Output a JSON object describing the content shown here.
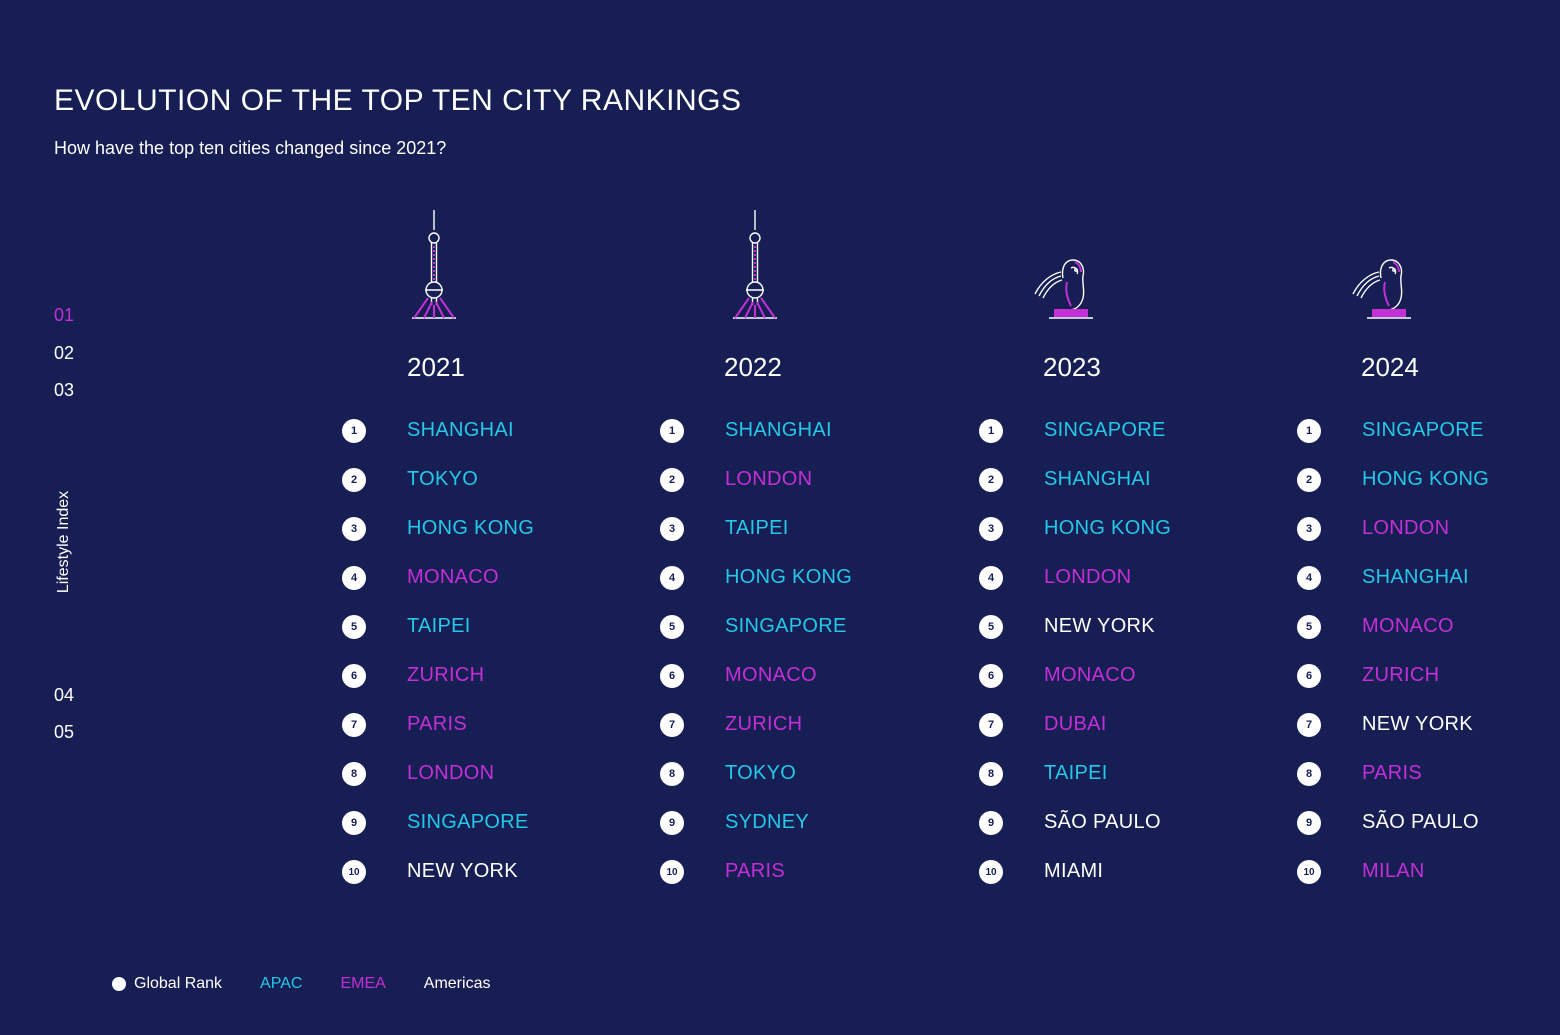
{
  "title": "EVOLUTION OF THE TOP TEN CITY RANKINGS",
  "subtitle": "How have the top ten cities changed since 2021?",
  "colors": {
    "background": "#161e54",
    "apac": "#25c8e8",
    "emea": "#c42fd6",
    "americas": "#ffffff",
    "active_nav": "#c42fd6"
  },
  "nav": {
    "items": [
      {
        "label": "01",
        "active": true
      },
      {
        "label": "02",
        "active": false
      },
      {
        "label": "03",
        "active": false
      },
      {
        "label": "04",
        "active": false
      },
      {
        "label": "05",
        "active": false
      }
    ],
    "section_label": "Lifestyle Index"
  },
  "columns": [
    {
      "year": "2021",
      "icon": "tv-tower-icon",
      "cities": [
        {
          "rank": "1",
          "name": "SHANGHAI",
          "region": "apac"
        },
        {
          "rank": "2",
          "name": "TOKYO",
          "region": "apac"
        },
        {
          "rank": "3",
          "name": "HONG KONG",
          "region": "apac"
        },
        {
          "rank": "4",
          "name": "MONACO",
          "region": "emea"
        },
        {
          "rank": "5",
          "name": "TAIPEI",
          "region": "apac"
        },
        {
          "rank": "6",
          "name": "ZURICH",
          "region": "emea"
        },
        {
          "rank": "7",
          "name": "PARIS",
          "region": "emea"
        },
        {
          "rank": "8",
          "name": "LONDON",
          "region": "emea"
        },
        {
          "rank": "9",
          "name": "SINGAPORE",
          "region": "apac"
        },
        {
          "rank": "10",
          "name": "NEW YORK",
          "region": "americas"
        }
      ]
    },
    {
      "year": "2022",
      "icon": "tv-tower-icon",
      "cities": [
        {
          "rank": "1",
          "name": "SHANGHAI",
          "region": "apac"
        },
        {
          "rank": "2",
          "name": "LONDON",
          "region": "emea"
        },
        {
          "rank": "3",
          "name": "TAIPEI",
          "region": "apac"
        },
        {
          "rank": "4",
          "name": "HONG KONG",
          "region": "apac"
        },
        {
          "rank": "5",
          "name": "SINGAPORE",
          "region": "apac"
        },
        {
          "rank": "6",
          "name": "MONACO",
          "region": "emea"
        },
        {
          "rank": "7",
          "name": "ZURICH",
          "region": "emea"
        },
        {
          "rank": "8",
          "name": "TOKYO",
          "region": "apac"
        },
        {
          "rank": "9",
          "name": "SYDNEY",
          "region": "apac"
        },
        {
          "rank": "10",
          "name": "PARIS",
          "region": "emea"
        }
      ]
    },
    {
      "year": "2023",
      "icon": "merlion-icon",
      "cities": [
        {
          "rank": "1",
          "name": "SINGAPORE",
          "region": "apac"
        },
        {
          "rank": "2",
          "name": "SHANGHAI",
          "region": "apac"
        },
        {
          "rank": "3",
          "name": "HONG KONG",
          "region": "apac"
        },
        {
          "rank": "4",
          "name": "LONDON",
          "region": "emea"
        },
        {
          "rank": "5",
          "name": "NEW YORK",
          "region": "americas"
        },
        {
          "rank": "6",
          "name": "MONACO",
          "region": "emea"
        },
        {
          "rank": "7",
          "name": "DUBAI",
          "region": "emea"
        },
        {
          "rank": "8",
          "name": "TAIPEI",
          "region": "apac"
        },
        {
          "rank": "9",
          "name": "SÃO PAULO",
          "region": "americas"
        },
        {
          "rank": "10",
          "name": "MIAMI",
          "region": "americas"
        }
      ]
    },
    {
      "year": "2024",
      "icon": "merlion-icon",
      "cities": [
        {
          "rank": "1",
          "name": "SINGAPORE",
          "region": "apac"
        },
        {
          "rank": "2",
          "name": "HONG KONG",
          "region": "apac"
        },
        {
          "rank": "3",
          "name": "LONDON",
          "region": "emea"
        },
        {
          "rank": "4",
          "name": "SHANGHAI",
          "region": "apac"
        },
        {
          "rank": "5",
          "name": "MONACO",
          "region": "emea"
        },
        {
          "rank": "6",
          "name": "ZURICH",
          "region": "emea"
        },
        {
          "rank": "7",
          "name": "NEW YORK",
          "region": "americas"
        },
        {
          "rank": "8",
          "name": "PARIS",
          "region": "emea"
        },
        {
          "rank": "9",
          "name": "SÃO PAULO",
          "region": "americas"
        },
        {
          "rank": "10",
          "name": "MILAN",
          "region": "emea"
        }
      ]
    }
  ],
  "legend": {
    "global_rank": "Global Rank",
    "apac": "APAC",
    "emea": "EMEA",
    "americas": "Americas"
  }
}
